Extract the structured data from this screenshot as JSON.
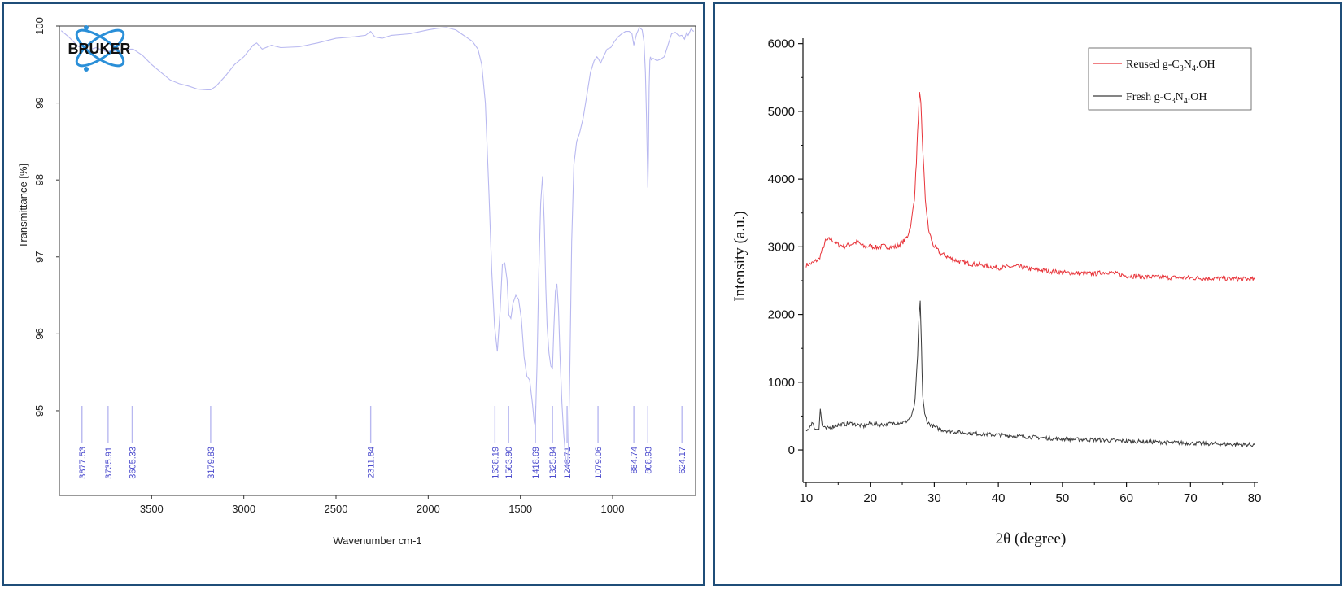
{
  "ftir": {
    "logo_text": "BRUKER",
    "xlabel": "Wavenumber cm-1",
    "ylabel": "Transmittance [%]",
    "colors": {
      "spectrum": "#b8b8f0",
      "peak_label": "#4a4acd",
      "axis": "#333333",
      "logo": "#2a8fd8"
    }
  },
  "xrd": {
    "xlabel": "2θ (degree)",
    "ylabel": "Intensity (a.u.)",
    "legend": {
      "reused": {
        "prefix": "Reused g-C",
        "sub1": "3",
        "mid": "N",
        "sub2": "4",
        "suffix": ".OH"
      },
      "fresh": {
        "prefix": "Fresh g-C",
        "sub1": "3",
        "mid": "N",
        "sub2": "4",
        "suffix": ".OH"
      }
    },
    "colors": {
      "reused": "#e8343a",
      "fresh": "#3a3a3a",
      "axis": "#111111"
    }
  },
  "chart_data": [
    {
      "type": "line",
      "xlabel": "Wavenumber cm-1",
      "ylabel": "Transmittance [%]",
      "xlim": [
        4000,
        550
      ],
      "ylim": [
        93.9,
        100
      ],
      "x_ticks": [
        "3500",
        "3000",
        "2500",
        "2000",
        "1500",
        "1000"
      ],
      "y_ticks": [
        "100",
        "99",
        "98",
        "97",
        "96",
        "95"
      ],
      "series": [
        {
          "x": [
            3990,
            3950,
            3900,
            3850,
            3800,
            3750,
            3700,
            3650,
            3600,
            3550,
            3500,
            3450,
            3400,
            3350,
            3300,
            3250,
            3200,
            3180,
            3150,
            3100,
            3050,
            3000,
            2950,
            2930,
            2900,
            2850,
            2800,
            2700,
            2600,
            2500,
            2400,
            2340,
            2312,
            2290,
            2250,
            2200,
            2100,
            2000,
            1950,
            1900,
            1850,
            1820,
            1790,
            1760,
            1730,
            1710,
            1690,
            1670,
            1655,
            1640,
            1625,
            1610,
            1598,
            1585,
            1572,
            1563,
            1552,
            1540,
            1525,
            1510,
            1495,
            1480,
            1465,
            1450,
            1435,
            1425,
            1419,
            1410,
            1400,
            1390,
            1380,
            1370,
            1362,
            1355,
            1345,
            1335,
            1326,
            1318,
            1310,
            1302,
            1294,
            1285,
            1275,
            1265,
            1255,
            1247,
            1240,
            1232,
            1222,
            1210,
            1195,
            1180,
            1160,
            1140,
            1120,
            1100,
            1085,
            1079,
            1065,
            1050,
            1030,
            1010,
            990,
            970,
            950,
            930,
            910,
            895,
            885,
            870,
            855,
            840,
            830,
            822,
            816,
            811,
            809,
            806,
            802,
            798,
            795,
            790,
            780,
            760,
            740,
            720,
            700,
            680,
            660,
            640,
            625,
            610,
            600,
            590,
            575,
            560
          ],
          "y": [
            99.94,
            99.86,
            99.74,
            99.68,
            99.72,
            99.67,
            99.68,
            99.7,
            99.7,
            99.62,
            99.5,
            99.4,
            99.3,
            99.25,
            99.22,
            99.18,
            99.17,
            99.17,
            99.22,
            99.35,
            99.5,
            99.6,
            99.75,
            99.78,
            99.7,
            99.75,
            99.72,
            99.73,
            99.78,
            99.84,
            99.86,
            99.88,
            99.93,
            99.86,
            99.84,
            99.88,
            99.9,
            99.95,
            99.97,
            99.98,
            99.95,
            99.9,
            99.85,
            99.8,
            99.7,
            99.5,
            99.0,
            97.8,
            96.8,
            96.1,
            95.77,
            96.3,
            96.9,
            96.92,
            96.7,
            96.25,
            96.2,
            96.4,
            96.5,
            96.45,
            96.2,
            95.7,
            95.45,
            95.4,
            95.1,
            94.85,
            94.8,
            95.6,
            96.8,
            97.7,
            98.05,
            97.4,
            96.6,
            96.1,
            95.75,
            95.58,
            95.55,
            96.1,
            96.55,
            96.65,
            96.35,
            95.7,
            95.1,
            94.7,
            94.4,
            94.26,
            94.5,
            95.5,
            97.2,
            98.2,
            98.5,
            98.6,
            98.8,
            99.1,
            99.4,
            99.55,
            99.6,
            99.58,
            99.52,
            99.6,
            99.7,
            99.72,
            99.8,
            99.86,
            99.9,
            99.93,
            99.93,
            99.9,
            99.75,
            99.9,
            99.98,
            99.95,
            99.8,
            99.4,
            98.8,
            98.2,
            97.9,
            98.3,
            99.2,
            99.55,
            99.6,
            99.56,
            99.58,
            99.55,
            99.57,
            99.6,
            99.75,
            99.9,
            99.92,
            99.87,
            99.88,
            99.83,
            99.91,
            99.88,
            99.96,
            99.93
          ]
        }
      ],
      "peaks": [
        "3877.53",
        "3735.91",
        "3605.33",
        "3179.83",
        "2311.84",
        "1638.19",
        "1563.90",
        "1418.69",
        "1325.84",
        "1246.71",
        "1079.06",
        "884.74",
        "808.93",
        "624.17"
      ]
    },
    {
      "type": "line",
      "xlabel": "2θ (degree)",
      "ylabel": "Intensity (a.u.)",
      "xlim": [
        9.5,
        80.5
      ],
      "ylim": [
        -480,
        6080
      ],
      "x_ticks": [
        "10",
        "20",
        "30",
        "40",
        "50",
        "60",
        "70",
        "80"
      ],
      "y_ticks": [
        "0",
        "1000",
        "2000",
        "3000",
        "4000",
        "5000",
        "6000"
      ],
      "series": [
        {
          "name": "Reused g-C3N4.OH",
          "x": [
            10,
            11,
            12,
            13,
            13.8,
            15,
            16,
            17,
            18,
            19,
            20,
            21,
            22,
            23,
            24,
            25,
            25.8,
            26.4,
            26.9,
            27.2,
            27.5,
            27.7,
            27.9,
            28.2,
            28.6,
            29.1,
            29.8,
            31,
            33,
            35,
            40,
            43,
            45,
            50,
            55,
            57,
            60,
            65,
            70,
            75,
            80
          ],
          "y": [
            2730,
            2760,
            2820,
            3080,
            3120,
            3030,
            3010,
            3040,
            3070,
            3000,
            3010,
            2990,
            3010,
            3000,
            3000,
            3060,
            3150,
            3350,
            3720,
            4250,
            4900,
            5260,
            5100,
            4450,
            3700,
            3250,
            3030,
            2900,
            2810,
            2760,
            2690,
            2710,
            2670,
            2620,
            2600,
            2630,
            2570,
            2550,
            2540,
            2530,
            2520
          ]
        },
        {
          "name": "Fresh g-C3N4.OH",
          "x": [
            10,
            10.9,
            11.5,
            12,
            12.2,
            12.5,
            13,
            15,
            17,
            19,
            20,
            22,
            24,
            25.5,
            26.5,
            27,
            27.4,
            27.6,
            27.8,
            28,
            28.2,
            28.5,
            29,
            30,
            31,
            33,
            35,
            40,
            45,
            50,
            55,
            60,
            65,
            70,
            75,
            80
          ],
          "y": [
            260,
            400,
            300,
            330,
            610,
            360,
            310,
            370,
            390,
            350,
            390,
            370,
            400,
            410,
            500,
            720,
            1400,
            1900,
            2200,
            1500,
            800,
            520,
            400,
            340,
            300,
            270,
            250,
            220,
            190,
            160,
            150,
            130,
            115,
            100,
            85,
            75
          ]
        }
      ]
    }
  ]
}
